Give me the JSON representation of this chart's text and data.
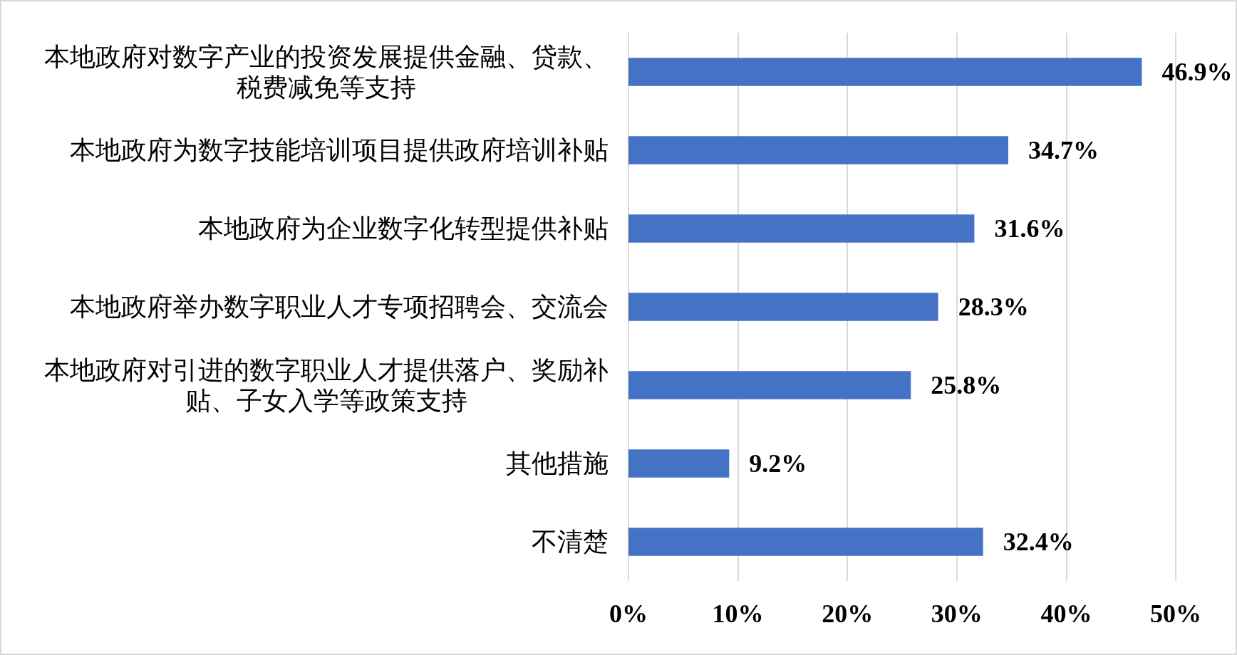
{
  "chart_data": {
    "type": "bar",
    "orientation": "horizontal",
    "categories": [
      "本地政府对数字产业的投资发展提供金融、贷款、税费减免等支持",
      "本地政府为数字技能培训项目提供政府培训补贴",
      "本地政府为企业数字化转型提供补贴",
      "本地政府举办数字职业人才专项招聘会、交流会",
      "本地政府对引进的数字职业人才提供落户、奖励补贴、子女入学等政策支持",
      "其他措施",
      "不清楚"
    ],
    "values": [
      46.9,
      34.7,
      31.6,
      28.3,
      25.8,
      9.2,
      32.4
    ],
    "color": "#4472c4",
    "value_labels": [
      "46.9%",
      "34.7%",
      "31.6%",
      "28.3%",
      "25.8%",
      "9.2%",
      "32.4%"
    ],
    "xlim": [
      0,
      50
    ],
    "xticks": [
      {
        "value": 0,
        "label": "0%"
      },
      {
        "value": 10,
        "label": "10%"
      },
      {
        "value": 20,
        "label": "20%"
      },
      {
        "value": 30,
        "label": "30%"
      },
      {
        "value": 40,
        "label": "40%"
      },
      {
        "value": 50,
        "label": "50%"
      }
    ],
    "grid": "x"
  }
}
